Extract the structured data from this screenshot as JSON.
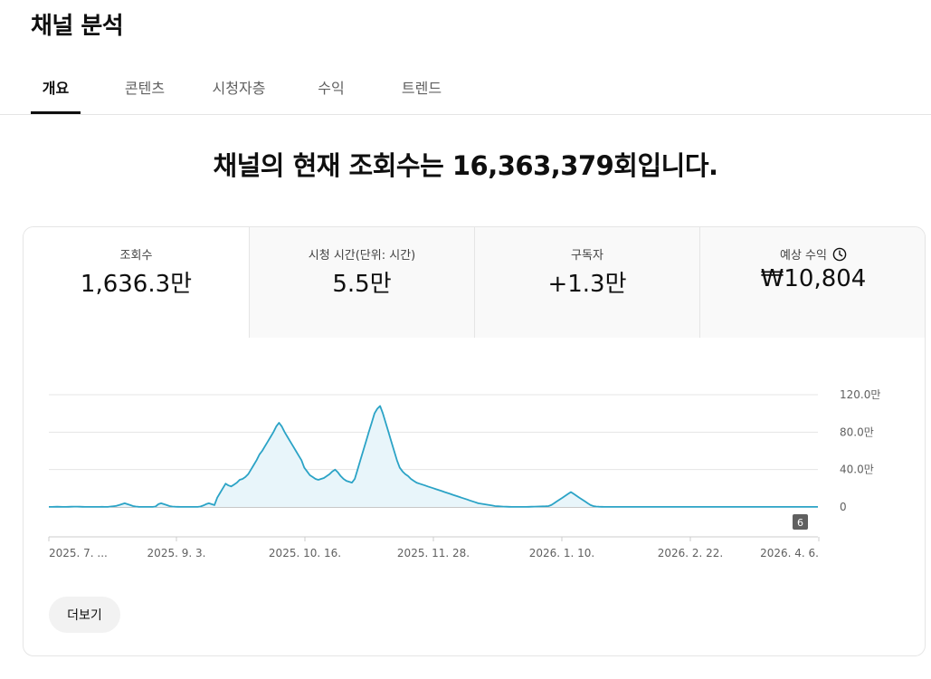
{
  "page": {
    "title": "채널 분석"
  },
  "tabs": [
    {
      "label": "개요",
      "active": true
    },
    {
      "label": "콘텐츠",
      "active": false
    },
    {
      "label": "시청자층",
      "active": false
    },
    {
      "label": "수익",
      "active": false
    },
    {
      "label": "트렌드",
      "active": false
    }
  ],
  "headline": "채널의 현재 조회수는 16,363,379회입니다.",
  "metrics": [
    {
      "label": "조회수",
      "value": "1,636.3만",
      "selected": true
    },
    {
      "label": "시청 시간(단위: 시간)",
      "value": "5.5만",
      "selected": false
    },
    {
      "label": "구독자",
      "value": "+1.3만",
      "selected": false
    },
    {
      "label": "예상 수익",
      "value": "₩10,804",
      "selected": false,
      "icon": "clock-icon"
    }
  ],
  "more_button": {
    "label": "더보기"
  },
  "colors": {
    "accent": "#2ba3c6",
    "fill": "#e8f5fa",
    "grid": "#e5e5e5",
    "marker": "#606060"
  },
  "chart_data": {
    "type": "area",
    "x_tick_labels": [
      "2025. 7. ...",
      "2025. 9. 3.",
      "2025. 10. 16.",
      "2025. 11. 28.",
      "2026. 1. 10.",
      "2026. 2. 22.",
      "2026. 4. 6."
    ],
    "y_tick_labels": [
      "120.0만",
      "80.0만",
      "40.0만",
      "0"
    ],
    "ylim": [
      0,
      1200000
    ],
    "grid": true,
    "event_marker": "6",
    "series": [
      {
        "values": [
          1000,
          1000,
          2000,
          3000,
          2000,
          1000,
          1000,
          2000,
          3000,
          4000,
          4000,
          3000,
          2000,
          1000,
          1000,
          1000,
          1000,
          1000,
          1000,
          2000,
          1000,
          1000,
          5000,
          8000,
          12000,
          20000,
          30000,
          40000,
          30000,
          20000,
          10000,
          5000,
          2000,
          1000,
          1000,
          1000,
          1000,
          1000,
          5000,
          30000,
          40000,
          30000,
          20000,
          10000,
          5000,
          3000,
          2000,
          1000,
          1000,
          1000,
          1000,
          1000,
          1000,
          1000,
          5000,
          15000,
          30000,
          40000,
          30000,
          20000,
          100000,
          150000,
          200000,
          250000,
          230000,
          220000,
          240000,
          260000,
          290000,
          300000,
          320000,
          350000,
          400000,
          450000,
          500000,
          560000,
          600000,
          650000,
          700000,
          750000,
          800000,
          860000,
          900000,
          860000,
          800000,
          750000,
          700000,
          650000,
          600000,
          550000,
          500000,
          420000,
          380000,
          340000,
          320000,
          300000,
          290000,
          300000,
          310000,
          330000,
          350000,
          380000,
          400000,
          370000,
          330000,
          300000,
          280000,
          270000,
          260000,
          300000,
          400000,
          500000,
          600000,
          700000,
          800000,
          900000,
          1000000,
          1050000,
          1080000,
          1000000,
          900000,
          800000,
          700000,
          600000,
          500000,
          420000,
          380000,
          350000,
          330000,
          300000,
          280000,
          260000,
          250000,
          240000,
          230000,
          220000,
          210000,
          200000,
          190000,
          180000,
          170000,
          160000,
          150000,
          140000,
          130000,
          120000,
          110000,
          100000,
          90000,
          80000,
          70000,
          60000,
          50000,
          40000,
          35000,
          30000,
          25000,
          20000,
          15000,
          10000,
          8000,
          6000,
          4000,
          3000,
          2000,
          1000,
          1000,
          1000,
          1000,
          1000,
          1000,
          2000,
          3000,
          4000,
          5000,
          6000,
          7000,
          8000,
          10000,
          20000,
          40000,
          60000,
          80000,
          100000,
          120000,
          140000,
          160000,
          140000,
          120000,
          100000,
          80000,
          60000,
          40000,
          20000,
          10000,
          5000,
          3000,
          2000,
          1000,
          1000,
          1000,
          1000,
          1000,
          1000,
          1000,
          1000,
          1000,
          1000,
          1000,
          1000,
          1000,
          1000,
          1000,
          1000,
          1000,
          1000,
          1000,
          1000,
          1000,
          1000,
          1000,
          1000,
          1000,
          1000,
          1000,
          1000,
          1000,
          1000,
          1000,
          1000,
          1000,
          1000,
          1000,
          1000,
          1000,
          1000,
          1000,
          1000,
          1000,
          1000,
          1000,
          1000,
          1000,
          1000,
          1000,
          1000,
          1000,
          1000,
          1000,
          1000,
          1000,
          1000,
          1000,
          1000,
          1000,
          1000,
          1000,
          1000,
          1000,
          1000,
          1000,
          1000,
          1000,
          1000,
          1000,
          1000,
          1000,
          1000,
          1000,
          1000,
          1000,
          1000,
          1000,
          1000,
          1000
        ]
      }
    ]
  }
}
